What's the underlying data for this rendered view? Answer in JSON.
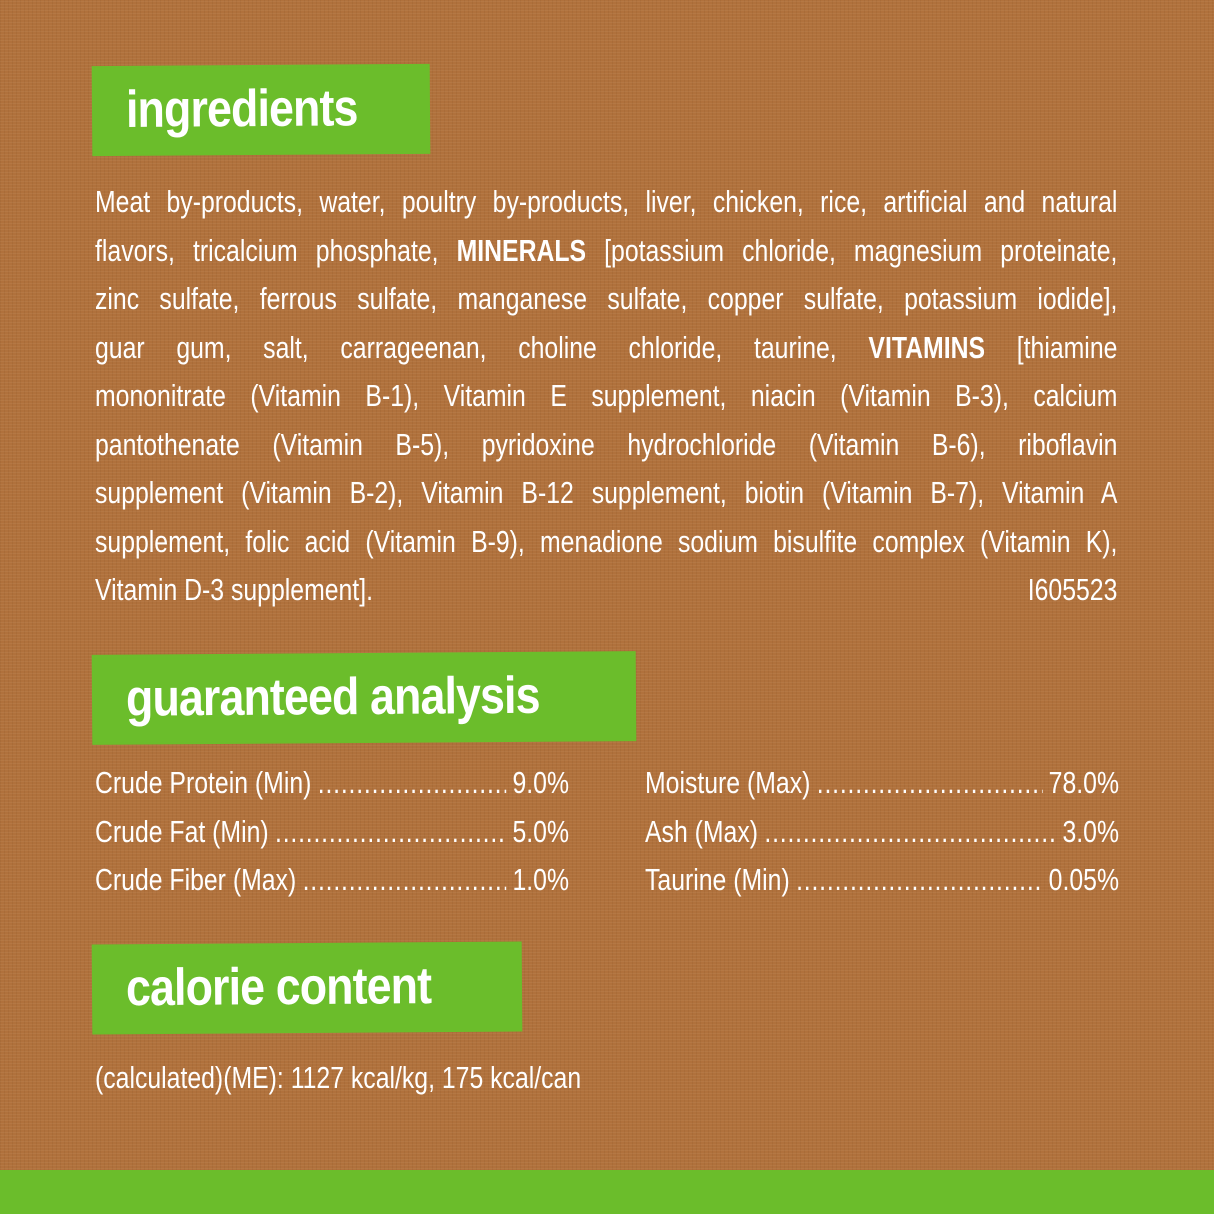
{
  "ingredients": {
    "heading": "ingredients",
    "lines": [
      [
        {
          "t": "Meat by-products, water, poultry by-products, liver, chicken, rice, artificial and natural"
        }
      ],
      [
        {
          "t": "flavors, tricalcium phosphate, "
        },
        {
          "t": "MINERALS",
          "b": true
        },
        {
          "t": " [potassium chloride, magnesium proteinate,"
        }
      ],
      [
        {
          "t": "zinc sulfate, ferrous sulfate, manganese sulfate, copper sulfate, potassium iodide],"
        }
      ],
      [
        {
          "t": "guar gum, salt, carrageenan, choline chloride, taurine, "
        },
        {
          "t": "VITAMINS",
          "b": true
        },
        {
          "t": " [thiamine"
        }
      ],
      [
        {
          "t": "mononitrate (Vitamin B-1), Vitamin E supplement, niacin (Vitamin B-3), calcium"
        }
      ],
      [
        {
          "t": "pantothenate (Vitamin B-5), pyridoxine hydrochloride (Vitamin B-6), riboflavin"
        }
      ],
      [
        {
          "t": "supplement (Vitamin B-2), Vitamin B-12 supplement, biotin (Vitamin B-7), Vitamin A"
        }
      ],
      [
        {
          "t": "supplement, folic acid (Vitamin B-9), menadione sodium bisulfite complex (Vitamin K),"
        }
      ],
      [
        {
          "t": "Vitamin D-3 supplement]."
        },
        {
          "t": "I605523"
        }
      ]
    ]
  },
  "analysis": {
    "heading": "guaranteed analysis",
    "left": [
      {
        "label": "Crude Protein (Min)",
        "value": "9.0%"
      },
      {
        "label": "Crude Fat (Min)",
        "value": "5.0%"
      },
      {
        "label": "Crude Fiber (Max)",
        "value": "1.0%"
      }
    ],
    "right": [
      {
        "label": "Moisture (Max)",
        "value": "78.0%"
      },
      {
        "label": "Ash (Max)",
        "value": "3.0%"
      },
      {
        "label": "Taurine (Min)",
        "value": "0.05%"
      }
    ]
  },
  "calorie": {
    "heading": "calorie content",
    "text": "(calculated)(ME): 1127 kcal/kg, 175 kcal/can"
  },
  "colors": {
    "background": "#b0713c",
    "accent": "#6bbd2b"
  }
}
